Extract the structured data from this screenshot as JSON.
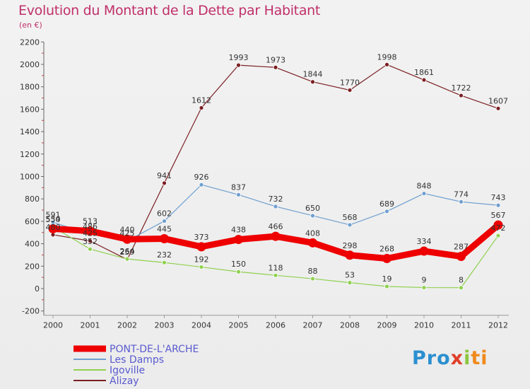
{
  "title": "Evolution du Montant de la Dette par Habitant",
  "subtitle": "(en €)",
  "logo": {
    "p1": "Pro",
    "p2": "x",
    "p3": "i",
    "p4": "ti"
  },
  "chart_data": {
    "type": "line",
    "categories": [
      "2000",
      "2001",
      "2002",
      "2003",
      "2004",
      "2005",
      "2006",
      "2007",
      "2008",
      "2009",
      "2010",
      "2011",
      "2012"
    ],
    "ylim": [
      -200,
      2200
    ],
    "yticks": [
      -200,
      0,
      200,
      400,
      600,
      800,
      1000,
      1200,
      1400,
      1600,
      1800,
      2000,
      2200
    ],
    "grid": false,
    "legend_position": "bottom-left",
    "series": [
      {
        "name": "Alizay",
        "color": "#7b1f23",
        "width": 1.2,
        "values": [
          480,
          425,
          259,
          941,
          1612,
          1993,
          1973,
          1844,
          1770,
          1998,
          1861,
          1722,
          1607
        ]
      },
      {
        "name": "Les Damps",
        "color": "#6f9fcf",
        "width": 1.2,
        "values": [
          591,
          486,
          425,
          602,
          926,
          837,
          732,
          650,
          568,
          689,
          848,
          774,
          743
        ]
      },
      {
        "name": "Igoville",
        "color": "#8fd14f",
        "width": 1.2,
        "values": [
          550,
          352,
          264,
          232,
          192,
          150,
          118,
          88,
          53,
          19,
          9,
          8,
          472
        ]
      },
      {
        "name": "PONT-DE-L'ARCHE",
        "color": "#ee0000",
        "width": 9,
        "values": [
          534,
          513,
          440,
          445,
          373,
          438,
          466,
          408,
          298,
          268,
          334,
          287,
          567
        ]
      }
    ],
    "legend_order": [
      "PONT-DE-L'ARCHE",
      "Les Damps",
      "Igoville",
      "Alizay"
    ]
  }
}
